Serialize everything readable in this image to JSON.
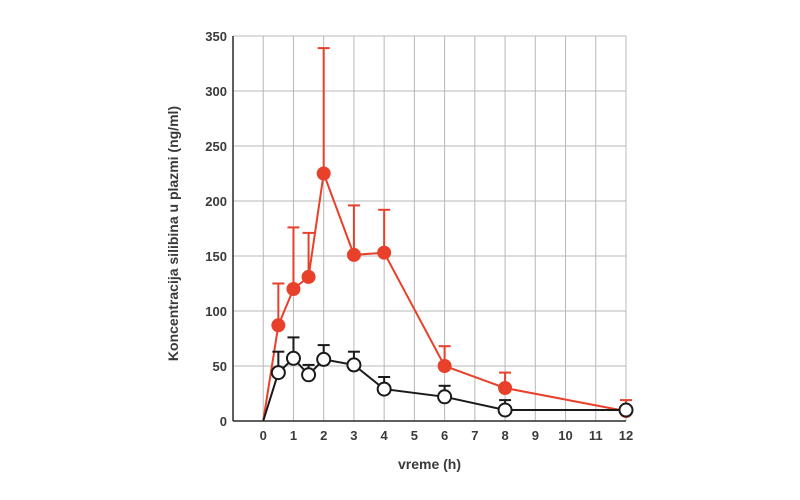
{
  "chart_data": {
    "type": "line",
    "xlabel": "vreme (h)",
    "ylabel": "Koncentracija silibina u plazmi (ng/ml)",
    "xlim": [
      -1,
      12
    ],
    "ylim": [
      0,
      350
    ],
    "x_ticks": [
      "0",
      "1",
      "2",
      "3",
      "4",
      "5",
      "6",
      "7",
      "8",
      "9",
      "10",
      "11",
      "12"
    ],
    "x_tick_values": [
      0,
      1,
      2,
      3,
      4,
      5,
      6,
      7,
      8,
      9,
      10,
      11,
      12
    ],
    "y_ticks": [
      "0",
      "50",
      "100",
      "150",
      "200",
      "250",
      "300",
      "350"
    ],
    "y_tick_values": [
      0,
      50,
      100,
      150,
      200,
      250,
      300,
      350
    ],
    "grid": true,
    "series": [
      {
        "color": "#e8402a",
        "marker": "filled-circle",
        "x": [
          0,
          0.5,
          1,
          1.5,
          2,
          3,
          4,
          6,
          8,
          12
        ],
        "y": [
          0,
          87,
          120,
          131,
          225,
          151,
          153,
          50,
          30,
          9
        ],
        "error_upper": [
          null,
          125,
          176,
          171,
          339,
          196,
          192,
          68,
          44,
          19
        ]
      },
      {
        "color": "#1a1a1a",
        "marker": "open-circle",
        "x": [
          0,
          0.5,
          1,
          1.5,
          2,
          3,
          4,
          6,
          8,
          12
        ],
        "y": [
          0,
          44,
          57,
          42,
          56,
          51,
          29,
          22,
          10,
          10
        ],
        "error_upper": [
          null,
          63,
          76,
          51,
          69,
          63,
          40,
          32,
          19,
          null
        ]
      }
    ]
  }
}
